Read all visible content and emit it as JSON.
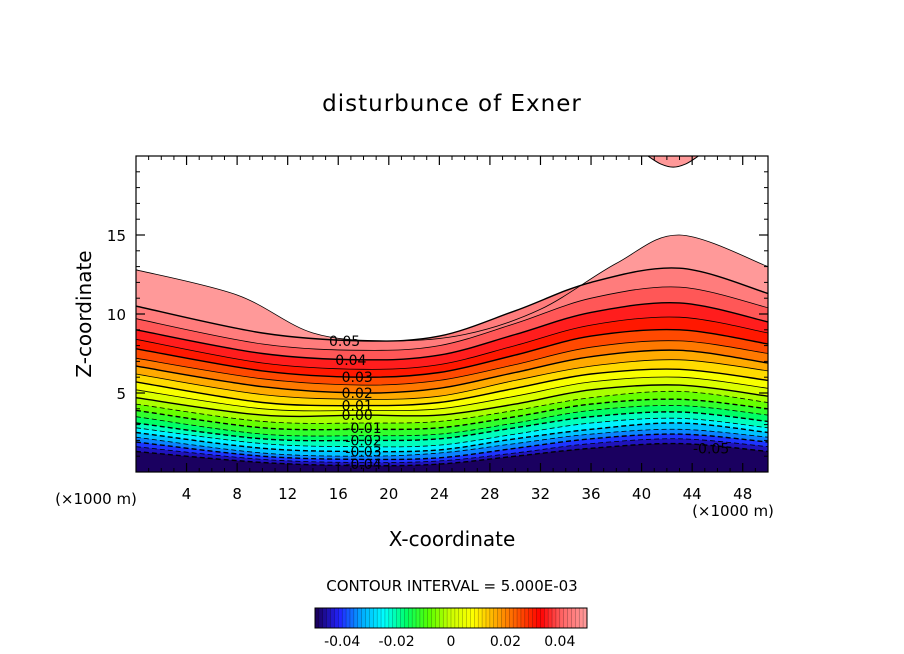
{
  "chart_data": {
    "type": "contour",
    "title": "disturbunce of Exner",
    "xlabel": "X-coordinate",
    "ylabel": "Z-coordinate",
    "x_unit_label": "(×1000 m)",
    "xlim": [
      0,
      50
    ],
    "ylim": [
      0,
      20
    ],
    "x_ticks": [
      4,
      8,
      12,
      16,
      20,
      24,
      28,
      32,
      36,
      40,
      44,
      48
    ],
    "y_ticks": [
      5,
      10,
      15
    ],
    "contour_interval_text": "CONTOUR INTERVAL = 5.000E-03",
    "contour_interval": 0.005,
    "value_range": [
      -0.05,
      0.055
    ],
    "contour_labels": [
      {
        "text": "0.05",
        "x": 16.5,
        "z": 8.3
      },
      {
        "text": "0.04",
        "x": 17.0,
        "z": 7.1
      },
      {
        "text": "0.03",
        "x": 17.5,
        "z": 6.0
      },
      {
        "text": "0.02",
        "x": 17.5,
        "z": 5.0
      },
      {
        "text": "0.01",
        "x": 17.5,
        "z": 4.2
      },
      {
        "text": "0.00",
        "x": 17.5,
        "z": 3.6
      },
      {
        "text": "-0.01",
        "x": 18.0,
        "z": 2.8
      },
      {
        "text": "-0.02",
        "x": 18.0,
        "z": 2.0
      },
      {
        "text": "-0.03",
        "x": 18.0,
        "z": 1.3
      },
      {
        "text": "-0.04",
        "x": 18.0,
        "z": 0.5
      },
      {
        "text": "-0.05",
        "x": 45.5,
        "z": 1.5
      }
    ],
    "colorbar": {
      "tick_values": [
        -0.04,
        -0.02,
        0,
        0.02,
        0.04
      ],
      "tick_labels": [
        "-0.04",
        "-0.02",
        "0",
        "0.02",
        "0.04"
      ],
      "range": [
        -0.05,
        0.05
      ]
    },
    "colormap": [
      "#1a0060",
      "#2222ff",
      "#00aaff",
      "#00ffff",
      "#00ff66",
      "#55ff00",
      "#ccff00",
      "#ffff00",
      "#ffaa00",
      "#ff5500",
      "#ff0000",
      "#ff6666",
      "#ff9999"
    ],
    "contours": [
      {
        "level": -0.05,
        "points": [
          [
            0,
            1.3
          ],
          [
            10,
            0.6
          ],
          [
            18,
            0.4
          ],
          [
            24,
            0.5
          ],
          [
            30,
            1.0
          ],
          [
            36,
            1.5
          ],
          [
            43,
            1.8
          ],
          [
            50,
            1.3
          ]
        ]
      },
      {
        "level": -0.045,
        "points": [
          [
            0,
            1.6
          ],
          [
            10,
            0.8
          ],
          [
            18,
            0.6
          ],
          [
            24,
            0.7
          ],
          [
            30,
            1.2
          ],
          [
            36,
            1.8
          ],
          [
            43,
            2.1
          ],
          [
            50,
            1.6
          ]
        ]
      },
      {
        "level": -0.04,
        "points": [
          [
            0,
            1.9
          ],
          [
            10,
            1.0
          ],
          [
            18,
            0.8
          ],
          [
            24,
            0.9
          ],
          [
            30,
            1.5
          ],
          [
            36,
            2.1
          ],
          [
            43,
            2.4
          ],
          [
            50,
            1.9
          ]
        ]
      },
      {
        "level": -0.035,
        "points": [
          [
            0,
            2.2
          ],
          [
            10,
            1.2
          ],
          [
            18,
            1.0
          ],
          [
            24,
            1.2
          ],
          [
            30,
            1.8
          ],
          [
            36,
            2.4
          ],
          [
            43,
            2.7
          ],
          [
            50,
            2.2
          ]
        ]
      },
      {
        "level": -0.03,
        "points": [
          [
            0,
            2.5
          ],
          [
            10,
            1.5
          ],
          [
            18,
            1.3
          ],
          [
            24,
            1.4
          ],
          [
            30,
            2.1
          ],
          [
            36,
            2.7
          ],
          [
            43,
            3.1
          ],
          [
            50,
            2.5
          ]
        ]
      },
      {
        "level": -0.025,
        "points": [
          [
            0,
            2.8
          ],
          [
            10,
            1.8
          ],
          [
            18,
            1.6
          ],
          [
            24,
            1.7
          ],
          [
            30,
            2.4
          ],
          [
            36,
            3.1
          ],
          [
            43,
            3.4
          ],
          [
            50,
            2.8
          ]
        ]
      },
      {
        "level": -0.02,
        "points": [
          [
            0,
            3.1
          ],
          [
            10,
            2.1
          ],
          [
            18,
            2.0
          ],
          [
            24,
            2.1
          ],
          [
            30,
            2.8
          ],
          [
            36,
            3.5
          ],
          [
            43,
            3.8
          ],
          [
            50,
            3.2
          ]
        ]
      },
      {
        "level": -0.015,
        "points": [
          [
            0,
            3.5
          ],
          [
            10,
            2.4
          ],
          [
            18,
            2.3
          ],
          [
            24,
            2.4
          ],
          [
            30,
            3.1
          ],
          [
            36,
            3.9
          ],
          [
            43,
            4.2
          ],
          [
            50,
            3.6
          ]
        ]
      },
      {
        "level": -0.01,
        "points": [
          [
            0,
            3.9
          ],
          [
            10,
            2.8
          ],
          [
            18,
            2.7
          ],
          [
            24,
            2.8
          ],
          [
            30,
            3.5
          ],
          [
            36,
            4.3
          ],
          [
            43,
            4.6
          ],
          [
            50,
            4.0
          ]
        ]
      },
      {
        "level": -0.005,
        "points": [
          [
            0,
            4.3
          ],
          [
            10,
            3.2
          ],
          [
            18,
            3.1
          ],
          [
            24,
            3.2
          ],
          [
            30,
            3.9
          ],
          [
            36,
            4.7
          ],
          [
            43,
            5.1
          ],
          [
            50,
            4.4
          ]
        ]
      },
      {
        "level": 0.0,
        "points": [
          [
            0,
            4.7
          ],
          [
            10,
            3.6
          ],
          [
            18,
            3.6
          ],
          [
            24,
            3.6
          ],
          [
            30,
            4.3
          ],
          [
            36,
            5.2
          ],
          [
            43,
            5.5
          ],
          [
            50,
            4.8
          ]
        ]
      },
      {
        "level": 0.005,
        "points": [
          [
            0,
            5.2
          ],
          [
            10,
            4.0
          ],
          [
            18,
            3.9
          ],
          [
            24,
            4.0
          ],
          [
            30,
            4.8
          ],
          [
            36,
            5.7
          ],
          [
            43,
            6.0
          ],
          [
            50,
            5.3
          ]
        ]
      },
      {
        "level": 0.01,
        "points": [
          [
            0,
            5.7
          ],
          [
            10,
            4.4
          ],
          [
            18,
            4.2
          ],
          [
            24,
            4.4
          ],
          [
            30,
            5.3
          ],
          [
            36,
            6.2
          ],
          [
            43,
            6.5
          ],
          [
            50,
            5.8
          ]
        ]
      },
      {
        "level": 0.015,
        "points": [
          [
            0,
            6.2
          ],
          [
            10,
            4.9
          ],
          [
            18,
            4.6
          ],
          [
            24,
            4.8
          ],
          [
            30,
            5.8
          ],
          [
            36,
            6.7
          ],
          [
            43,
            7.1
          ],
          [
            50,
            6.4
          ]
        ]
      },
      {
        "level": 0.02,
        "points": [
          [
            0,
            6.7
          ],
          [
            10,
            5.4
          ],
          [
            18,
            5.0
          ],
          [
            24,
            5.3
          ],
          [
            30,
            6.3
          ],
          [
            36,
            7.3
          ],
          [
            43,
            7.7
          ],
          [
            50,
            6.9
          ]
        ]
      },
      {
        "level": 0.025,
        "points": [
          [
            0,
            7.2
          ],
          [
            10,
            5.9
          ],
          [
            18,
            5.5
          ],
          [
            24,
            5.8
          ],
          [
            30,
            6.8
          ],
          [
            36,
            7.9
          ],
          [
            43,
            8.3
          ],
          [
            50,
            7.5
          ]
        ]
      },
      {
        "level": 0.03,
        "points": [
          [
            0,
            7.8
          ],
          [
            10,
            6.4
          ],
          [
            18,
            6.0
          ],
          [
            24,
            6.3
          ],
          [
            30,
            7.4
          ],
          [
            36,
            8.6
          ],
          [
            43,
            9.0
          ],
          [
            50,
            8.1
          ]
        ]
      },
      {
        "level": 0.035,
        "points": [
          [
            0,
            8.4
          ],
          [
            10,
            6.9
          ],
          [
            18,
            6.5
          ],
          [
            24,
            6.8
          ],
          [
            30,
            8.0
          ],
          [
            36,
            9.3
          ],
          [
            43,
            9.8
          ],
          [
            50,
            8.8
          ]
        ]
      },
      {
        "level": 0.04,
        "points": [
          [
            0,
            9.0
          ],
          [
            10,
            7.5
          ],
          [
            18,
            7.1
          ],
          [
            24,
            7.4
          ],
          [
            30,
            8.7
          ],
          [
            36,
            10.1
          ],
          [
            43,
            10.7
          ],
          [
            50,
            9.5
          ]
        ]
      },
      {
        "level": 0.045,
        "points": [
          [
            0,
            9.7
          ],
          [
            10,
            8.1
          ],
          [
            18,
            7.7
          ],
          [
            24,
            8.0
          ],
          [
            30,
            9.4
          ],
          [
            36,
            11.0
          ],
          [
            43,
            11.7
          ],
          [
            50,
            10.4
          ]
        ]
      },
      {
        "level": 0.05,
        "points": [
          [
            0,
            10.5
          ],
          [
            10,
            8.8
          ],
          [
            18,
            8.3
          ],
          [
            24,
            8.6
          ],
          [
            30,
            10.2
          ],
          [
            36,
            12.0
          ],
          [
            43,
            12.9
          ],
          [
            50,
            11.3
          ]
        ]
      },
      {
        "level": 0.055,
        "points": [
          [
            0,
            12.8
          ],
          [
            8,
            11.2
          ],
          [
            14,
            8.8
          ],
          [
            20,
            8.3
          ],
          [
            26,
            8.7
          ],
          [
            32,
            10.3
          ],
          [
            38,
            13.2
          ],
          [
            43,
            15.0
          ],
          [
            50,
            13.0
          ]
        ]
      }
    ],
    "top_patch": {
      "level": 0.05,
      "points": [
        [
          40.5,
          20
        ],
        [
          41.5,
          19.5
        ],
        [
          42.5,
          19.3
        ],
        [
          43.5,
          19.5
        ],
        [
          44.5,
          20
        ]
      ]
    }
  }
}
